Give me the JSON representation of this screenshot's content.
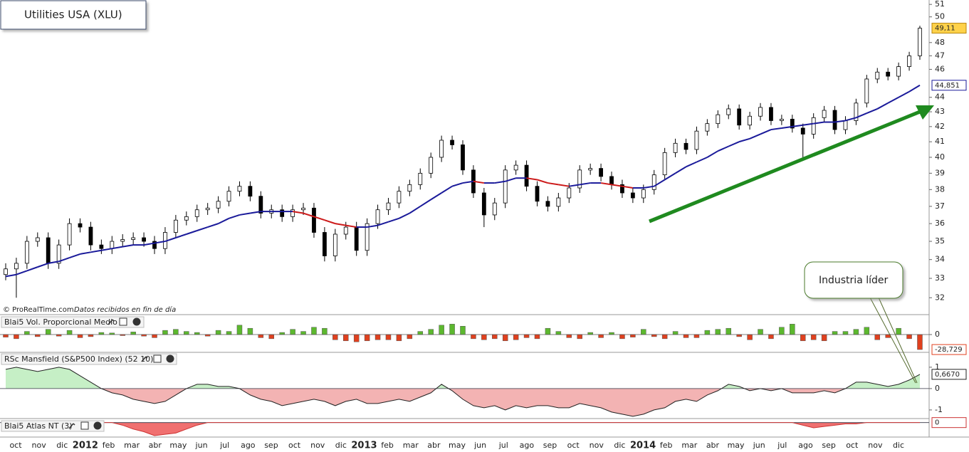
{
  "chart_data": [
    {
      "type": "candlestick",
      "title": "Utilities USA (XLU)",
      "source_note": "© ProRealTime.com",
      "data_note": "Datos recibidos en fin de día",
      "annotation": "Industria líder",
      "x_labels": [
        "oct",
        "nov",
        "dic",
        "2012",
        "feb",
        "mar",
        "abr",
        "may",
        "jun",
        "jul",
        "ago",
        "sep",
        "oct",
        "nov",
        "dic",
        "2013",
        "feb",
        "mar",
        "abr",
        "may",
        "jun",
        "jul",
        "ago",
        "sep",
        "oct",
        "nov",
        "dic",
        "2014",
        "feb",
        "mar",
        "abr",
        "may",
        "jun",
        "jul",
        "ago",
        "sep",
        "oct",
        "nov",
        "dic"
      ],
      "open": [
        33.2,
        33.5,
        33.8,
        35.0,
        35.2,
        33.8,
        34.8,
        36.0,
        35.8,
        34.8,
        34.6,
        35.0,
        35.1,
        35.2,
        35.0,
        34.6,
        35.5,
        36.2,
        36.4,
        36.8,
        36.9,
        37.3,
        37.9,
        38.2,
        37.6,
        36.6,
        36.8,
        36.4,
        36.8,
        36.9,
        35.5,
        34.2,
        35.4,
        35.8,
        34.5,
        36.0,
        36.8,
        37.2,
        37.9,
        38.3,
        39.0,
        40.0,
        41.1,
        40.8,
        39.2,
        37.8,
        36.5,
        37.2,
        39.2,
        39.5,
        38.2,
        37.3,
        37.0,
        37.5,
        38.1,
        39.2,
        39.3,
        38.8,
        38.3,
        37.8,
        37.5,
        38.0,
        38.9,
        40.3,
        40.9,
        40.5,
        41.7,
        42.2,
        42.8,
        43.2,
        42.1,
        42.7,
        43.3,
        42.4,
        42.5,
        41.9,
        41.5,
        42.6,
        43.1,
        41.8,
        42.4,
        43.6,
        45.3,
        45.8,
        45.5,
        46.2,
        47.0
      ],
      "high": [
        33.8,
        34.1,
        35.3,
        35.5,
        35.5,
        35.1,
        36.3,
        36.3,
        36.1,
        35.1,
        35.3,
        35.4,
        35.5,
        35.5,
        35.3,
        35.8,
        36.5,
        36.7,
        37.1,
        37.2,
        37.6,
        38.2,
        38.5,
        38.5,
        37.9,
        37.1,
        37.1,
        37.1,
        37.2,
        37.2,
        35.8,
        35.7,
        36.1,
        36.1,
        36.3,
        37.1,
        37.5,
        38.2,
        38.6,
        39.3,
        40.3,
        41.4,
        41.4,
        41.1,
        39.5,
        38.1,
        37.5,
        39.5,
        39.8,
        39.8,
        38.5,
        37.6,
        37.8,
        38.4,
        39.5,
        39.6,
        39.6,
        39.1,
        38.6,
        38.1,
        38.3,
        39.2,
        40.6,
        41.2,
        41.2,
        42.0,
        42.5,
        43.1,
        43.5,
        43.5,
        43.0,
        43.6,
        43.6,
        42.8,
        42.8,
        42.2,
        42.9,
        43.4,
        43.4,
        42.7,
        43.9,
        45.6,
        46.1,
        46.1,
        46.5,
        47.3,
        49.3
      ],
      "low": [
        32.9,
        32.0,
        33.5,
        34.7,
        33.5,
        33.5,
        34.5,
        35.5,
        34.5,
        34.3,
        34.3,
        34.7,
        34.8,
        34.7,
        34.3,
        34.3,
        35.2,
        35.9,
        36.1,
        36.5,
        36.6,
        37.0,
        37.6,
        37.3,
        36.3,
        36.3,
        36.1,
        36.1,
        36.5,
        35.2,
        33.9,
        33.9,
        35.1,
        34.2,
        34.2,
        35.7,
        36.5,
        36.9,
        37.6,
        38.0,
        38.7,
        39.7,
        40.5,
        38.9,
        37.5,
        35.8,
        36.2,
        36.9,
        38.9,
        37.9,
        37.0,
        36.7,
        36.7,
        37.2,
        37.8,
        38.9,
        38.5,
        38.0,
        37.5,
        37.2,
        37.2,
        37.7,
        38.6,
        40.0,
        40.2,
        40.2,
        41.4,
        41.9,
        42.5,
        41.8,
        41.8,
        42.4,
        42.1,
        42.1,
        41.6,
        40.0,
        41.2,
        42.3,
        41.5,
        41.5,
        42.1,
        43.3,
        45.0,
        45.2,
        45.2,
        45.9,
        46.7
      ],
      "close": [
        33.5,
        33.8,
        35.0,
        35.2,
        33.8,
        34.8,
        36.0,
        35.8,
        34.8,
        34.6,
        35.0,
        35.1,
        35.2,
        35.0,
        34.6,
        35.5,
        36.2,
        36.4,
        36.8,
        36.9,
        37.3,
        37.9,
        38.2,
        37.6,
        36.6,
        36.8,
        36.4,
        36.8,
        36.9,
        35.5,
        34.2,
        35.4,
        35.8,
        34.5,
        36.0,
        36.8,
        37.2,
        37.9,
        38.3,
        39.0,
        40.0,
        41.1,
        40.8,
        39.2,
        37.8,
        36.5,
        37.2,
        39.2,
        39.5,
        38.2,
        37.3,
        37.0,
        37.5,
        38.1,
        39.2,
        39.3,
        38.8,
        38.3,
        37.8,
        37.5,
        38.0,
        38.9,
        40.3,
        40.9,
        40.5,
        41.7,
        42.2,
        42.8,
        43.2,
        42.1,
        42.7,
        43.3,
        42.4,
        42.5,
        41.9,
        41.5,
        42.6,
        43.1,
        41.8,
        42.4,
        43.6,
        45.3,
        45.8,
        45.5,
        46.2,
        47.0,
        49.11
      ],
      "last_close_label": "49,11",
      "ma": [
        33.1,
        33.2,
        33.4,
        33.6,
        33.8,
        33.9,
        34.1,
        34.3,
        34.4,
        34.5,
        34.6,
        34.7,
        34.8,
        34.8,
        34.9,
        35.0,
        35.2,
        35.4,
        35.6,
        35.8,
        36.0,
        36.3,
        36.5,
        36.6,
        36.7,
        36.7,
        36.7,
        36.7,
        36.6,
        36.4,
        36.2,
        36.0,
        35.9,
        35.8,
        35.8,
        35.9,
        36.1,
        36.3,
        36.6,
        37.0,
        37.4,
        37.8,
        38.2,
        38.4,
        38.5,
        38.4,
        38.4,
        38.5,
        38.7,
        38.7,
        38.6,
        38.4,
        38.3,
        38.2,
        38.3,
        38.4,
        38.4,
        38.3,
        38.2,
        38.1,
        38.1,
        38.2,
        38.6,
        39.0,
        39.4,
        39.7,
        40.0,
        40.4,
        40.7,
        41.0,
        41.2,
        41.5,
        41.8,
        41.9,
        42.0,
        42.1,
        42.2,
        42.3,
        42.3,
        42.4,
        42.6,
        42.9,
        43.2,
        43.6,
        44.0,
        44.4,
        44.851
      ],
      "ma_last_label": "44,851",
      "ylim": [
        31.4,
        51.3
      ],
      "yticks": [
        51,
        50,
        48,
        47,
        46,
        44,
        43,
        42,
        41,
        40,
        39,
        38,
        37,
        36,
        35,
        34,
        33,
        32
      ],
      "log_scale": true,
      "colors": {
        "up": "#ffffff",
        "down": "#000000",
        "ma_rising": "#1a1a9a",
        "ma_falling": "#cc1a1a",
        "trend": "#1f8a1f"
      }
    },
    {
      "type": "bar",
      "title": "Blai5 Vol. Proporcional Medio",
      "values": [
        -5,
        -8,
        6,
        -4,
        10,
        -3,
        8,
        -6,
        -4,
        4,
        3,
        -2,
        5,
        -3,
        -6,
        8,
        10,
        6,
        4,
        -3,
        8,
        6,
        18,
        12,
        -6,
        -8,
        4,
        10,
        6,
        14,
        12,
        -10,
        -12,
        -14,
        -12,
        -10,
        -10,
        -12,
        -8,
        6,
        10,
        18,
        20,
        16,
        -8,
        -10,
        -8,
        -12,
        -10,
        -6,
        -8,
        12,
        6,
        -6,
        -8,
        4,
        -6,
        4,
        -8,
        -5,
        10,
        -4,
        -8,
        6,
        -6,
        -6,
        8,
        10,
        12,
        -4,
        -10,
        10,
        -8,
        14,
        20,
        -12,
        -10,
        -12,
        6,
        6,
        10,
        14,
        -10,
        -6,
        12,
        -8,
        -28.729
      ],
      "last_label": "-28,729",
      "ylim": [
        -30,
        30
      ],
      "yticks": [
        0
      ],
      "colors": {
        "positive": "#5cb82e",
        "negative": "#e0401e"
      }
    },
    {
      "type": "area",
      "title": "RSc Mansfield (S&P500 Index) (52 10)",
      "values": [
        0.9,
        1.0,
        0.9,
        0.8,
        0.9,
        1.0,
        0.9,
        0.6,
        0.3,
        0.0,
        -0.2,
        -0.3,
        -0.5,
        -0.6,
        -0.7,
        -0.6,
        -0.3,
        0.0,
        0.2,
        0.2,
        0.1,
        0.1,
        0.0,
        -0.3,
        -0.5,
        -0.6,
        -0.8,
        -0.7,
        -0.6,
        -0.5,
        -0.6,
        -0.8,
        -0.6,
        -0.5,
        -0.7,
        -0.7,
        -0.6,
        -0.5,
        -0.6,
        -0.4,
        -0.2,
        0.2,
        -0.1,
        -0.5,
        -0.8,
        -0.9,
        -0.8,
        -1.0,
        -0.8,
        -0.9,
        -0.8,
        -0.8,
        -0.9,
        -0.9,
        -0.7,
        -0.8,
        -0.9,
        -1.1,
        -1.2,
        -1.3,
        -1.2,
        -1.0,
        -0.9,
        -0.6,
        -0.5,
        -0.6,
        -0.3,
        -0.1,
        0.2,
        0.1,
        -0.1,
        0.0,
        -0.1,
        0.0,
        -0.2,
        -0.2,
        -0.2,
        -0.1,
        -0.2,
        0.0,
        0.3,
        0.3,
        0.2,
        0.1,
        0.2,
        0.4,
        0.667
      ],
      "last_label": "0,6670",
      "ylim": [
        -1.37,
        1.53
      ],
      "yticks": [
        1,
        0,
        -1
      ],
      "colors": {
        "positive": "#c6efc6",
        "negative": "#f3b3b3",
        "line": "#222222"
      }
    },
    {
      "type": "area",
      "title": "Blai5 Atlas NT (3)",
      "values": [
        0,
        0,
        0,
        0,
        0,
        0,
        0,
        0,
        0,
        0,
        0,
        -0.2,
        -0.5,
        -0.7,
        -1.0,
        -0.9,
        -0.8,
        -0.5,
        -0.2,
        0,
        0,
        0,
        0,
        0,
        0,
        0,
        0,
        0,
        0,
        0,
        0,
        0,
        0,
        0,
        0,
        0,
        0,
        0,
        0,
        0,
        0,
        0,
        0,
        0,
        0,
        0,
        0,
        0,
        0,
        0,
        0,
        0,
        0,
        0,
        0,
        0,
        0,
        0,
        0,
        0,
        0,
        0,
        0,
        0,
        0,
        0,
        0,
        0,
        0,
        0,
        0,
        0,
        0,
        0,
        0,
        -0.2,
        -0.4,
        -0.3,
        -0.2,
        -0.1,
        -0.1,
        0,
        0,
        0,
        0,
        0,
        0
      ],
      "last_label": "0",
      "ylim": [
        -1,
        0.2
      ],
      "yticks": [],
      "colors": {
        "positive": "#c6efc6",
        "negative": "#f07070",
        "line": "#cc3333"
      }
    }
  ]
}
